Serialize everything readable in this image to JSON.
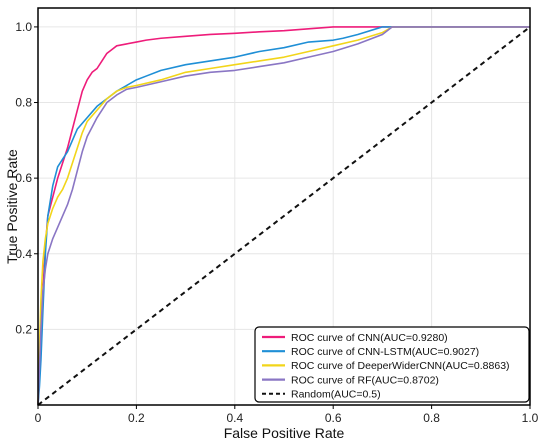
{
  "chart_data": {
    "type": "line",
    "title": "",
    "xlabel": "False Positive Rate",
    "ylabel": "True Positive Rate",
    "xlim": [
      0,
      1
    ],
    "ylim": [
      0,
      1.05
    ],
    "xticks": [
      0,
      0.2,
      0.4,
      0.6,
      0.8,
      1.0
    ],
    "xtick_labels": [
      "0",
      "0.2",
      "0.4",
      "0.6",
      "0.8",
      "1.0"
    ],
    "yticks": [
      0.2,
      0.4,
      0.6,
      0.8,
      1.0
    ],
    "ytick_labels": [
      "0.2",
      "0.4",
      "0.6",
      "0.8",
      "1.0"
    ],
    "grid": true,
    "legend_position": "bottom-right",
    "series": [
      {
        "name": "ROC curve of CNN(AUC=0.9280)",
        "color": "#ee1c7a",
        "x": [
          0,
          0.005,
          0.01,
          0.015,
          0.02,
          0.03,
          0.04,
          0.05,
          0.06,
          0.07,
          0.08,
          0.09,
          0.1,
          0.11,
          0.12,
          0.13,
          0.14,
          0.15,
          0.16,
          0.18,
          0.2,
          0.22,
          0.25,
          0.3,
          0.35,
          0.4,
          0.45,
          0.5,
          0.55,
          0.6,
          0.65,
          0.7,
          0.8,
          1.0
        ],
        "y": [
          0,
          0.12,
          0.3,
          0.42,
          0.5,
          0.55,
          0.6,
          0.64,
          0.68,
          0.73,
          0.78,
          0.83,
          0.86,
          0.88,
          0.89,
          0.91,
          0.93,
          0.94,
          0.95,
          0.955,
          0.96,
          0.965,
          0.97,
          0.975,
          0.98,
          0.983,
          0.987,
          0.99,
          0.995,
          1.0,
          1.0,
          1.0,
          1.0,
          1.0
        ]
      },
      {
        "name": "ROC curve of CNN-LSTM(AUC=0.9027)",
        "color": "#1f8fd6",
        "x": [
          0,
          0.003,
          0.006,
          0.01,
          0.015,
          0.02,
          0.03,
          0.04,
          0.05,
          0.06,
          0.07,
          0.08,
          0.1,
          0.12,
          0.14,
          0.16,
          0.18,
          0.2,
          0.22,
          0.25,
          0.3,
          0.35,
          0.4,
          0.45,
          0.5,
          0.55,
          0.6,
          0.62,
          0.65,
          0.7,
          0.75,
          0.8,
          1.0
        ],
        "y": [
          0,
          0.05,
          0.12,
          0.25,
          0.4,
          0.5,
          0.58,
          0.63,
          0.65,
          0.67,
          0.7,
          0.73,
          0.76,
          0.79,
          0.81,
          0.83,
          0.845,
          0.86,
          0.87,
          0.885,
          0.9,
          0.91,
          0.92,
          0.935,
          0.945,
          0.96,
          0.965,
          0.97,
          0.98,
          1.0,
          1.0,
          1.0,
          1.0
        ]
      },
      {
        "name": "ROC curve of DeeperWiderCNN(AUC=0.8863)",
        "color": "#f2d51a",
        "x": [
          0,
          0.003,
          0.006,
          0.01,
          0.015,
          0.02,
          0.03,
          0.04,
          0.05,
          0.06,
          0.07,
          0.08,
          0.09,
          0.1,
          0.12,
          0.14,
          0.16,
          0.18,
          0.2,
          0.25,
          0.3,
          0.35,
          0.4,
          0.45,
          0.5,
          0.55,
          0.6,
          0.65,
          0.7,
          0.72,
          0.8,
          1.0
        ],
        "y": [
          0,
          0.15,
          0.28,
          0.38,
          0.44,
          0.48,
          0.52,
          0.55,
          0.57,
          0.6,
          0.64,
          0.68,
          0.72,
          0.75,
          0.78,
          0.81,
          0.83,
          0.84,
          0.845,
          0.86,
          0.88,
          0.89,
          0.9,
          0.91,
          0.92,
          0.935,
          0.95,
          0.965,
          0.985,
          1.0,
          1.0,
          1.0
        ]
      },
      {
        "name": "ROC curve of RF(AUC=0.8702)",
        "color": "#8a76c4",
        "x": [
          0,
          0.003,
          0.006,
          0.01,
          0.015,
          0.02,
          0.03,
          0.04,
          0.05,
          0.06,
          0.07,
          0.08,
          0.09,
          0.1,
          0.12,
          0.14,
          0.16,
          0.18,
          0.2,
          0.25,
          0.3,
          0.35,
          0.4,
          0.45,
          0.5,
          0.55,
          0.6,
          0.65,
          0.7,
          0.72,
          0.8,
          1.0
        ],
        "y": [
          0,
          0.1,
          0.2,
          0.3,
          0.36,
          0.4,
          0.44,
          0.47,
          0.5,
          0.53,
          0.57,
          0.62,
          0.67,
          0.71,
          0.76,
          0.8,
          0.82,
          0.835,
          0.84,
          0.855,
          0.87,
          0.88,
          0.885,
          0.895,
          0.905,
          0.92,
          0.935,
          0.955,
          0.98,
          1.0,
          1.0,
          1.0
        ]
      },
      {
        "name": "Random(AUC=0.5)",
        "color": "#111111",
        "dashed": true,
        "x": [
          0,
          1
        ],
        "y": [
          0,
          1
        ]
      }
    ]
  }
}
